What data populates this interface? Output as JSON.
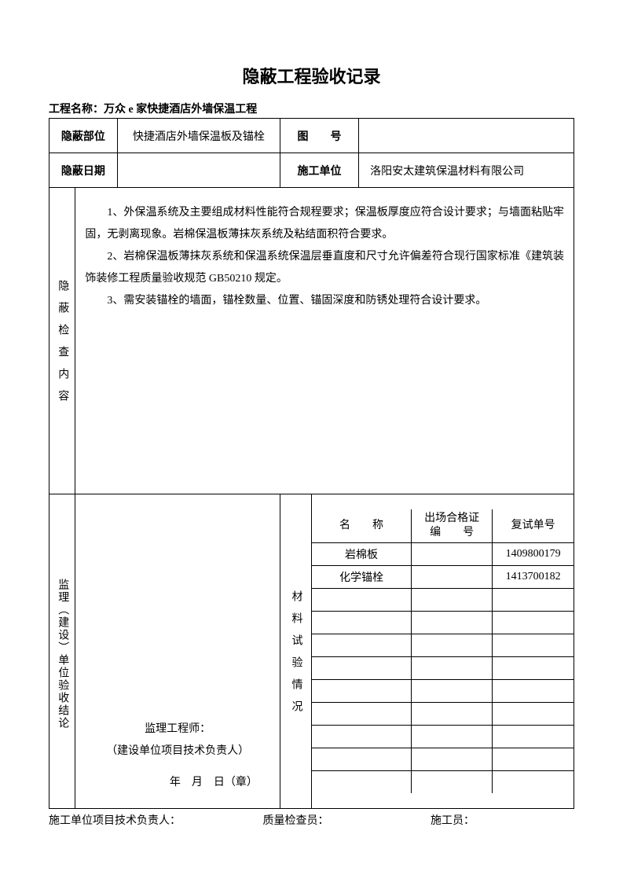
{
  "title": "隐蔽工程验收记录",
  "project_label": "工程名称：",
  "project_name": "万众 e 家快捷酒店外墙保温工程",
  "row1": {
    "label1": "隐蔽部位",
    "value1": "快捷酒店外墙保温板及锚栓",
    "label2": "图　　号",
    "value2": ""
  },
  "row2": {
    "label1": "隐蔽日期",
    "value1": "",
    "label2": "施工单位",
    "value2": "洛阳安太建筑保温材料有限公司"
  },
  "content_header": "隐蔽检查内容",
  "content_paras": [
    "1、外保温系统及主要组成材料性能符合规程要求；保温板厚度应符合设计要求；与墙面粘贴牢固，无剥离现象。岩棉保温板薄抹灰系统及粘结面积符合要求。",
    "2、岩棉保温板薄抹灰系统和保温系统保温层垂直度和尺寸允许偏差符合现行国家标准《建筑装饰装修工程质量验收规范 GB50210 规定。",
    "3、需安装锚栓的墙面，锚栓数量、位置、锚固深度和防锈处理符合设计要求。"
  ],
  "supervisor_header": "监理（建设）单位验收结论",
  "supervisor": {
    "line1": "监理工程师：",
    "line2": "（建设单位项目技术负责人）",
    "date": "年　月　日（章）"
  },
  "material_header": "材料试验情况",
  "material_table": {
    "columns": [
      "名　　称",
      "出场合格证\n编　　号",
      "复试单号"
    ],
    "rows": [
      [
        "岩棉板",
        "",
        "1409800179"
      ],
      [
        "化学锚栓",
        "",
        "1413700182"
      ],
      [
        "",
        "",
        ""
      ],
      [
        "",
        "",
        ""
      ],
      [
        "",
        "",
        ""
      ],
      [
        "",
        "",
        ""
      ],
      [
        "",
        "",
        ""
      ],
      [
        "",
        "",
        ""
      ],
      [
        "",
        "",
        ""
      ],
      [
        "",
        "",
        ""
      ],
      [
        "",
        "",
        ""
      ]
    ]
  },
  "footer": {
    "left": "施工单位项目技术负责人：",
    "mid": "质量检查员：",
    "right": "施工员："
  },
  "colors": {
    "border": "#000000",
    "text": "#000000",
    "background": "#ffffff"
  },
  "layout": {
    "col_widths_pct": [
      5,
      8,
      31,
      6,
      9,
      41
    ],
    "material_col_widths_pct": [
      38,
      31,
      31
    ]
  }
}
